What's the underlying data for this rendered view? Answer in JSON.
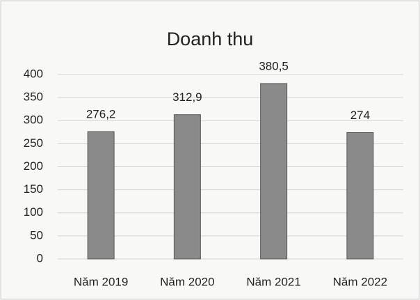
{
  "chart_data": {
    "type": "bar",
    "title": "Doanh thu",
    "categories": [
      "Năm 2019",
      "Năm 2020",
      "Năm 2021",
      "Năm 2022"
    ],
    "values": [
      276.2,
      312.9,
      380.5,
      274
    ],
    "value_labels": [
      "276,2",
      "312,9",
      "380,5",
      "274"
    ],
    "color": "#8a8a8a",
    "ylim": [
      0,
      400
    ],
    "yticks": [
      0,
      50,
      100,
      150,
      200,
      250,
      300,
      350,
      400
    ],
    "grid": true
  }
}
